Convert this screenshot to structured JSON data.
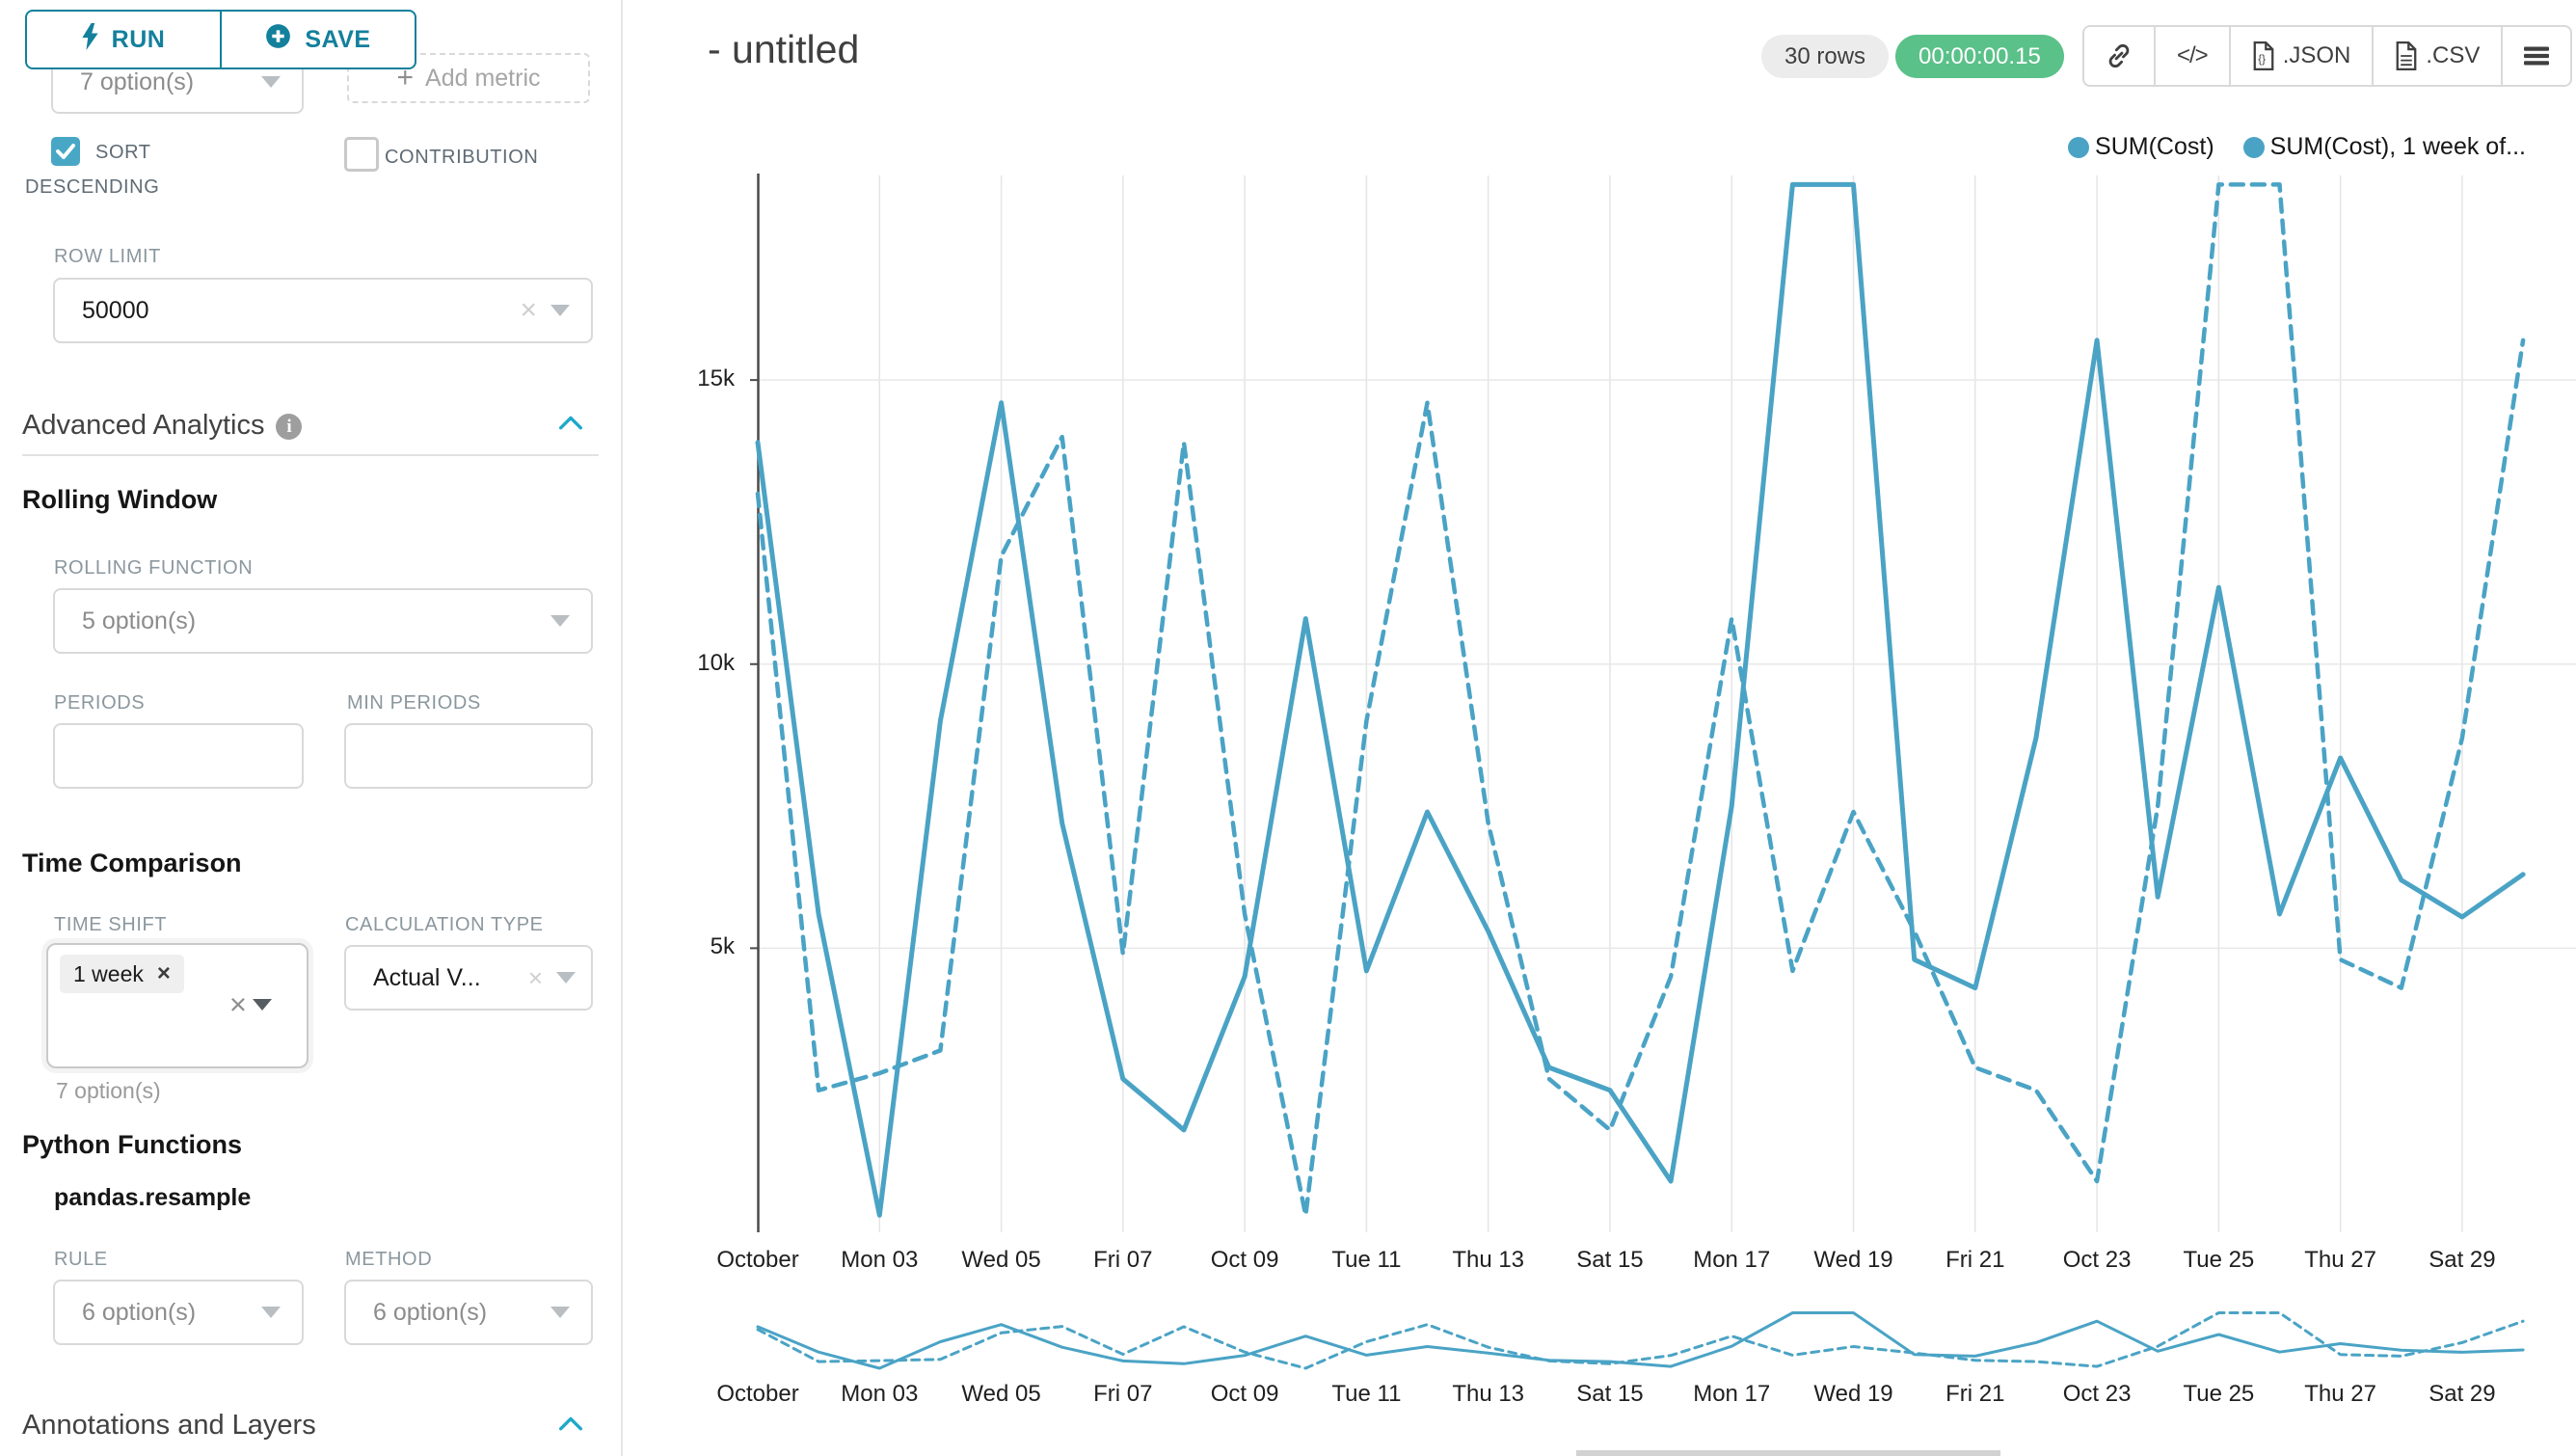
{
  "sidebar": {
    "run_label": "RUN",
    "save_label": "SAVE",
    "groupby_placeholder": "7 option(s)",
    "add_metric_label": "Add metric",
    "sort_line1": "SORT",
    "sort_line2": "DESCENDING",
    "contribution_label": "CONTRIBUTION",
    "row_limit_label": "ROW LIMIT",
    "row_limit_value": "50000",
    "advanced_analytics_title": "Advanced Analytics",
    "rolling_window_title": "Rolling Window",
    "rolling_function_label": "ROLLING FUNCTION",
    "rolling_function_placeholder": "5 option(s)",
    "periods_label": "PERIODS",
    "min_periods_label": "MIN PERIODS",
    "time_comparison_title": "Time Comparison",
    "time_shift_label": "TIME SHIFT",
    "time_shift_tag": "1 week",
    "time_shift_hint": "7 option(s)",
    "calculation_type_label": "CALCULATION TYPE",
    "calculation_type_value": "Actual V...",
    "python_functions_title": "Python Functions",
    "python_functions_item": "pandas.resample",
    "rule_label": "RULE",
    "rule_placeholder": "6 option(s)",
    "method_label": "METHOD",
    "method_placeholder": "6 option(s)",
    "annotations_title": "Annotations and Layers"
  },
  "header": {
    "title": "- untitled",
    "rows_badge": "30 rows",
    "timer_badge": "00:00:00.15",
    "json_label": ".JSON",
    "csv_label": ".CSV"
  },
  "legend": {
    "item1": "SUM(Cost)",
    "item2": "SUM(Cost), 1 week of..."
  },
  "colors": {
    "accent_teal": "#13809c",
    "checkbox_teal": "#48a7c5",
    "chevron_teal": "#1fa8c9",
    "line_blue": "#4aa3c5",
    "success_green": "#5ac189"
  },
  "chart_data": {
    "type": "line",
    "title": "",
    "xlabel": "",
    "ylabel": "",
    "x_tick_labels": [
      "October",
      "Mon 03",
      "Wed 05",
      "Fri 07",
      "Oct 09",
      "Tue 11",
      "Thu 13",
      "Sat 15",
      "Mon 17",
      "Wed 19",
      "Fri 21",
      "Oct 23",
      "Tue 25",
      "Thu 27",
      "Sat 29"
    ],
    "x_days": 30,
    "y_ticks": [
      {
        "label": "5k",
        "value": 5000
      },
      {
        "label": "10k",
        "value": 10000
      },
      {
        "label": "15k",
        "value": 15000
      }
    ],
    "ylim": [
      0,
      18600
    ],
    "clip_max": 18440,
    "grid": true,
    "legend_position": "top-right",
    "series": [
      {
        "name": "SUM(Cost)",
        "style": "solid",
        "values": [
          13900,
          5600,
          300,
          9000,
          14600,
          7200,
          2700,
          1800,
          4500,
          10800,
          4600,
          7400,
          5300,
          2900,
          2500,
          900,
          7500,
          19500,
          19000,
          4800,
          4300,
          8700,
          15700,
          5900,
          11350,
          5600,
          8350,
          6200,
          5550,
          6300
        ]
      },
      {
        "name": "SUM(Cost), 1 week offset",
        "style": "dashed",
        "values": [
          13000,
          2500,
          2800,
          3200,
          11900,
          14000,
          4900,
          13900,
          5600,
          300,
          9000,
          14600,
          7200,
          2700,
          1800,
          4500,
          10800,
          4600,
          7400,
          5300,
          2900,
          2500,
          900,
          7500,
          19500,
          19000,
          4800,
          4300,
          8700,
          15700
        ]
      }
    ]
  }
}
